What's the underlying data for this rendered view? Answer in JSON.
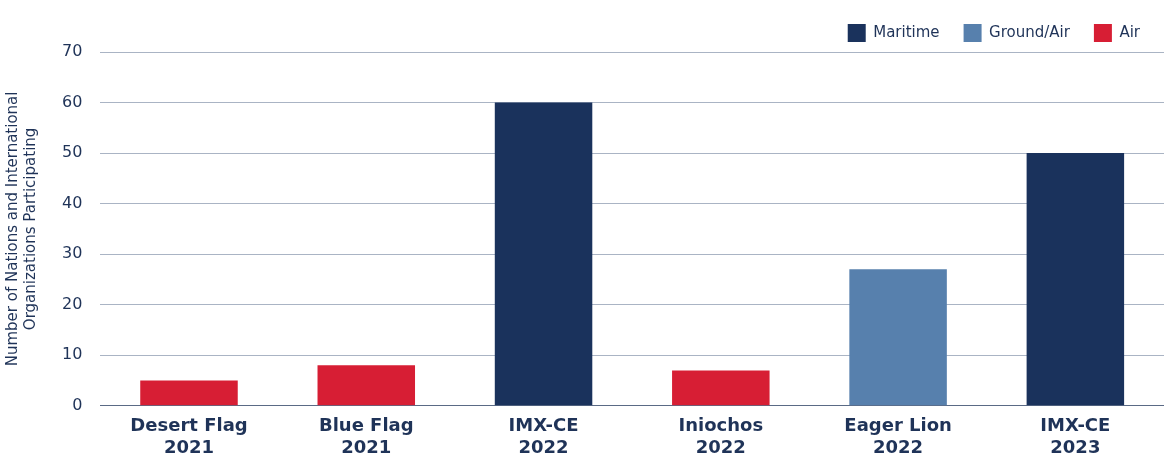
{
  "chart_data": {
    "type": "bar",
    "ylabel": "Number of Nations and International\nOrganizations Participating",
    "categories": [
      "Desert Flag\n2021",
      "Blue Flag\n2021",
      "IMX-CE\n2022",
      "Iniochos\n2022",
      "Eager Lion\n2022",
      "IMX-CE\n2023"
    ],
    "series": [
      {
        "name": "Maritime",
        "color": "#1a325c",
        "values": [
          null,
          null,
          60,
          null,
          null,
          50
        ]
      },
      {
        "name": "Ground/Air",
        "color": "#5780ad",
        "values": [
          null,
          null,
          null,
          null,
          27,
          null
        ]
      },
      {
        "name": "Air",
        "color": "#d71e34",
        "values": [
          5,
          8,
          null,
          7,
          null,
          null
        ]
      }
    ],
    "ylim": [
      0,
      70
    ],
    "yticks": [
      0,
      10,
      20,
      30,
      40,
      50,
      60,
      70
    ],
    "grid": "y",
    "legend": "top right"
  }
}
